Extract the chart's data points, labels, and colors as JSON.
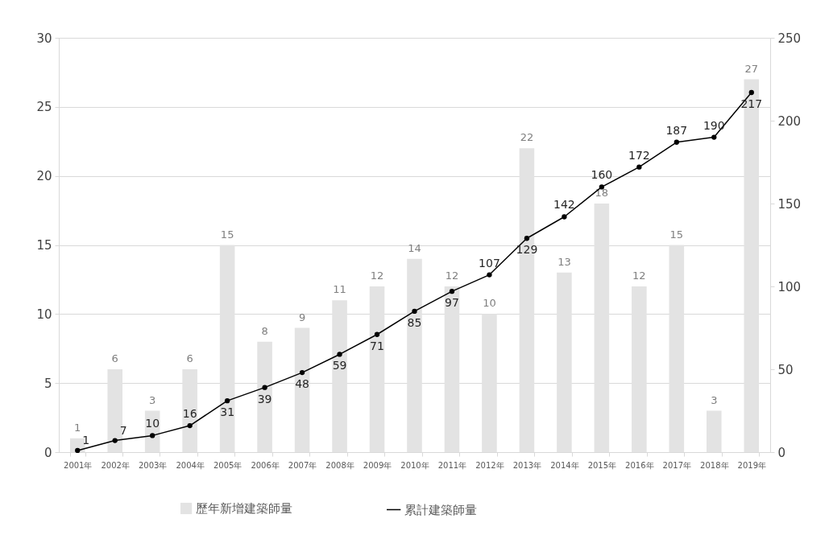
{
  "chart_data": {
    "type": "bar",
    "categories": [
      "2001年",
      "2002年",
      "2003年",
      "2004年",
      "2005年",
      "2006年",
      "2007年",
      "2008年",
      "2009年",
      "2010年",
      "2011年",
      "2012年",
      "2013年",
      "2014年",
      "2015年",
      "2016年",
      "2017年",
      "2018年",
      "2019年"
    ],
    "series": [
      {
        "name": "歷年新增建築師量",
        "color": "#e3e3e3",
        "values": [
          1,
          6,
          3,
          6,
          15,
          8,
          9,
          11,
          12,
          14,
          12,
          10,
          22,
          13,
          18,
          12,
          15,
          3,
          27
        ]
      },
      {
        "name": "累計建築師量",
        "type": "line",
        "axis": "y2",
        "color": "#000000",
        "values": [
          1,
          7,
          10,
          16,
          31,
          39,
          48,
          59,
          71,
          85,
          97,
          107,
          129,
          142,
          160,
          172,
          187,
          190,
          217
        ]
      }
    ],
    "ylim": [
      0,
      30
    ],
    "yticks": [
      0,
      5,
      10,
      15,
      20,
      25,
      30
    ],
    "y2lim": [
      0,
      250
    ],
    "y2ticks": [
      0,
      50,
      100,
      150,
      200,
      250
    ],
    "grid": "y",
    "legend": "bottom",
    "marker": "circle",
    "line_style": "solid",
    "data_labels": true
  }
}
